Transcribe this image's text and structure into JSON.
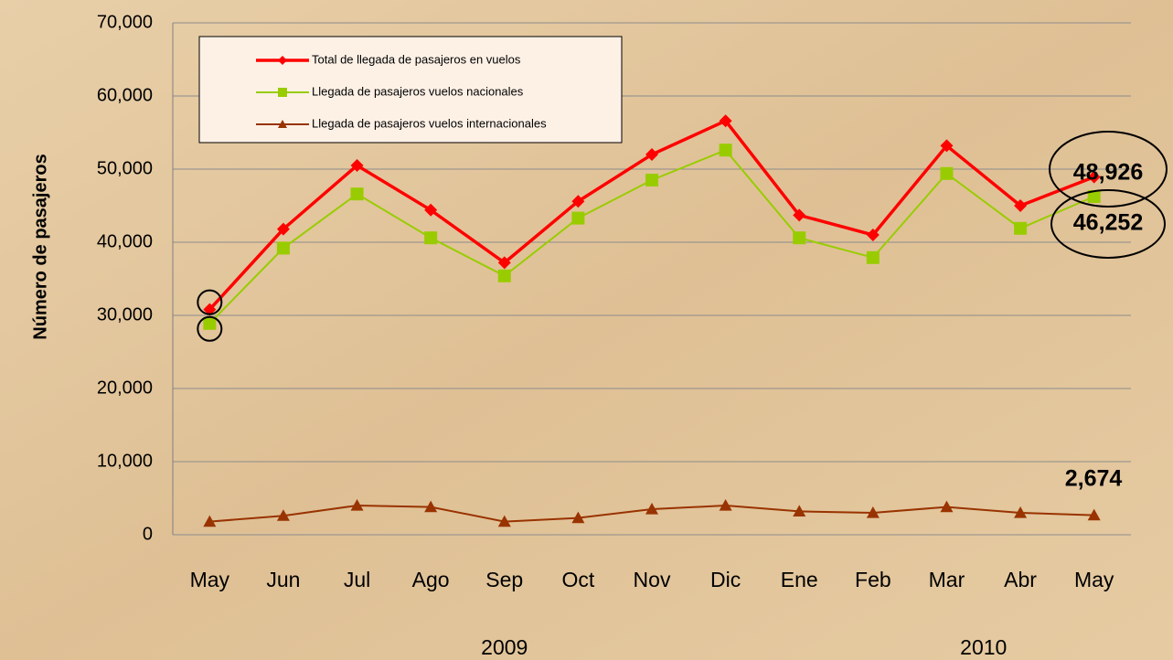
{
  "chart_data": {
    "type": "line",
    "y_label": "Número de pasajeros",
    "categories": [
      "May",
      "Jun",
      "Jul",
      "Ago",
      "Sep",
      "Oct",
      "Nov",
      "Dic",
      "Ene",
      "Feb",
      "Mar",
      "Abr",
      "May"
    ],
    "category_groups": [
      "2009",
      "2010"
    ],
    "series": [
      {
        "name": "Total de llegada de pasajeros  en vuelos",
        "color": "#ff0000",
        "marker": "diamond",
        "values": [
          30800,
          41800,
          50500,
          44400,
          37200,
          45600,
          52000,
          56600,
          43700,
          41000,
          53200,
          45000,
          48926
        ],
        "value_labels": [
          null,
          null,
          null,
          null,
          null,
          null,
          null,
          null,
          null,
          null,
          null,
          null,
          "48,926"
        ]
      },
      {
        "name": "Llegada de pasajeros vuelos nacionales",
        "color": "#99cc00",
        "marker": "square",
        "values": [
          28900,
          39200,
          46600,
          40600,
          35400,
          43300,
          48500,
          52600,
          40600,
          37900,
          49400,
          41900,
          46252
        ],
        "value_labels": [
          null,
          null,
          null,
          null,
          null,
          null,
          null,
          null,
          null,
          null,
          null,
          null,
          "46,252"
        ]
      },
      {
        "name": "Llegada de pasajeros vuelos internacionales",
        "color": "#993300",
        "marker": "triangle",
        "values": [
          1800,
          2600,
          4000,
          3800,
          1800,
          2300,
          3500,
          4000,
          3200,
          3000,
          3800,
          3000,
          2674
        ],
        "value_labels": [
          null,
          null,
          null,
          null,
          null,
          null,
          null,
          null,
          null,
          null,
          null,
          null,
          "2,674"
        ]
      }
    ],
    "ylim": [
      0,
      70000
    ],
    "yticks": [
      {
        "value": 0,
        "label": "0"
      },
      {
        "value": 10000,
        "label": "10,000"
      },
      {
        "value": 20000,
        "label": "20,000"
      },
      {
        "value": 30000,
        "label": "30,000"
      },
      {
        "value": 40000,
        "label": "40,000"
      },
      {
        "value": 50000,
        "label": "50,000"
      },
      {
        "value": 60000,
        "label": "60,000"
      },
      {
        "value": 70000,
        "label": "70,000"
      }
    ],
    "grid": true,
    "legend": "upper left"
  }
}
